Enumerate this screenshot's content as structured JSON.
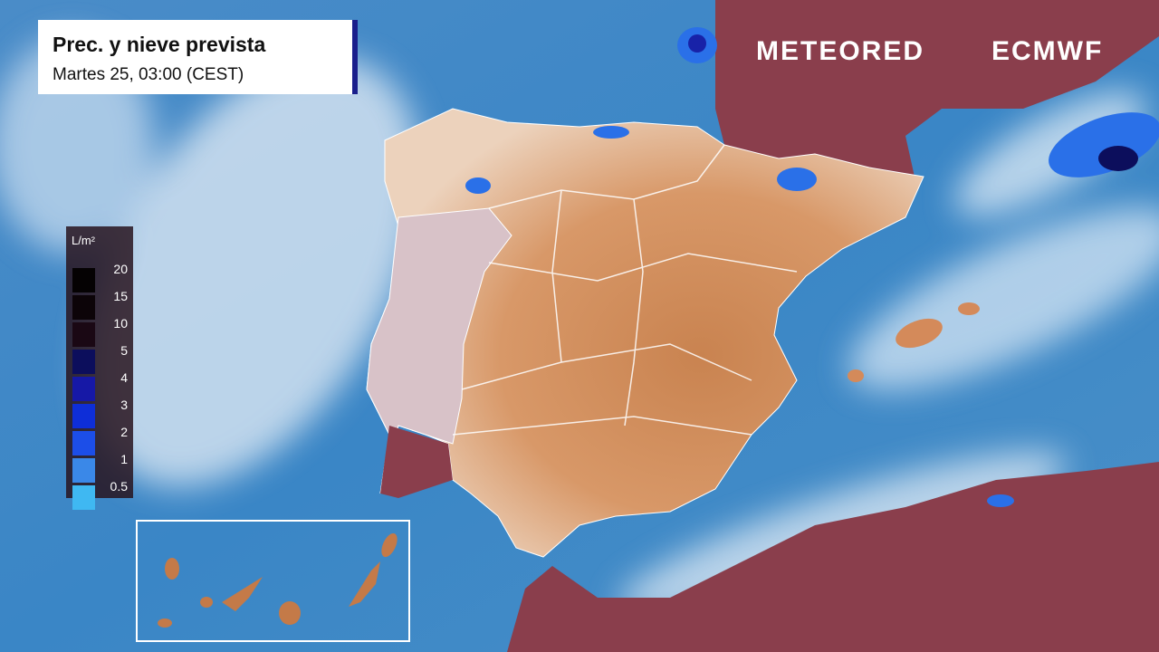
{
  "header": {
    "title": "Prec. y nieve prevista",
    "subtitle": "Martes 25, 03:00 (CEST)"
  },
  "legend": {
    "unit": "L/m²",
    "items": [
      {
        "label": "20",
        "color": "#050203"
      },
      {
        "label": "15",
        "color": "#0c0408"
      },
      {
        "label": "10",
        "color": "#1a0814"
      },
      {
        "label": "5",
        "color": "#0c0e5c"
      },
      {
        "label": "4",
        "color": "#1618a6"
      },
      {
        "label": "3",
        "color": "#0e2ed8"
      },
      {
        "label": "2",
        "color": "#1c4ee8"
      },
      {
        "label": "1",
        "color": "#3a88e8"
      },
      {
        "label": "0.5",
        "color": "#3fb8f2"
      }
    ]
  },
  "logos": {
    "brand": "METEORED",
    "partner": "ECMWF"
  }
}
